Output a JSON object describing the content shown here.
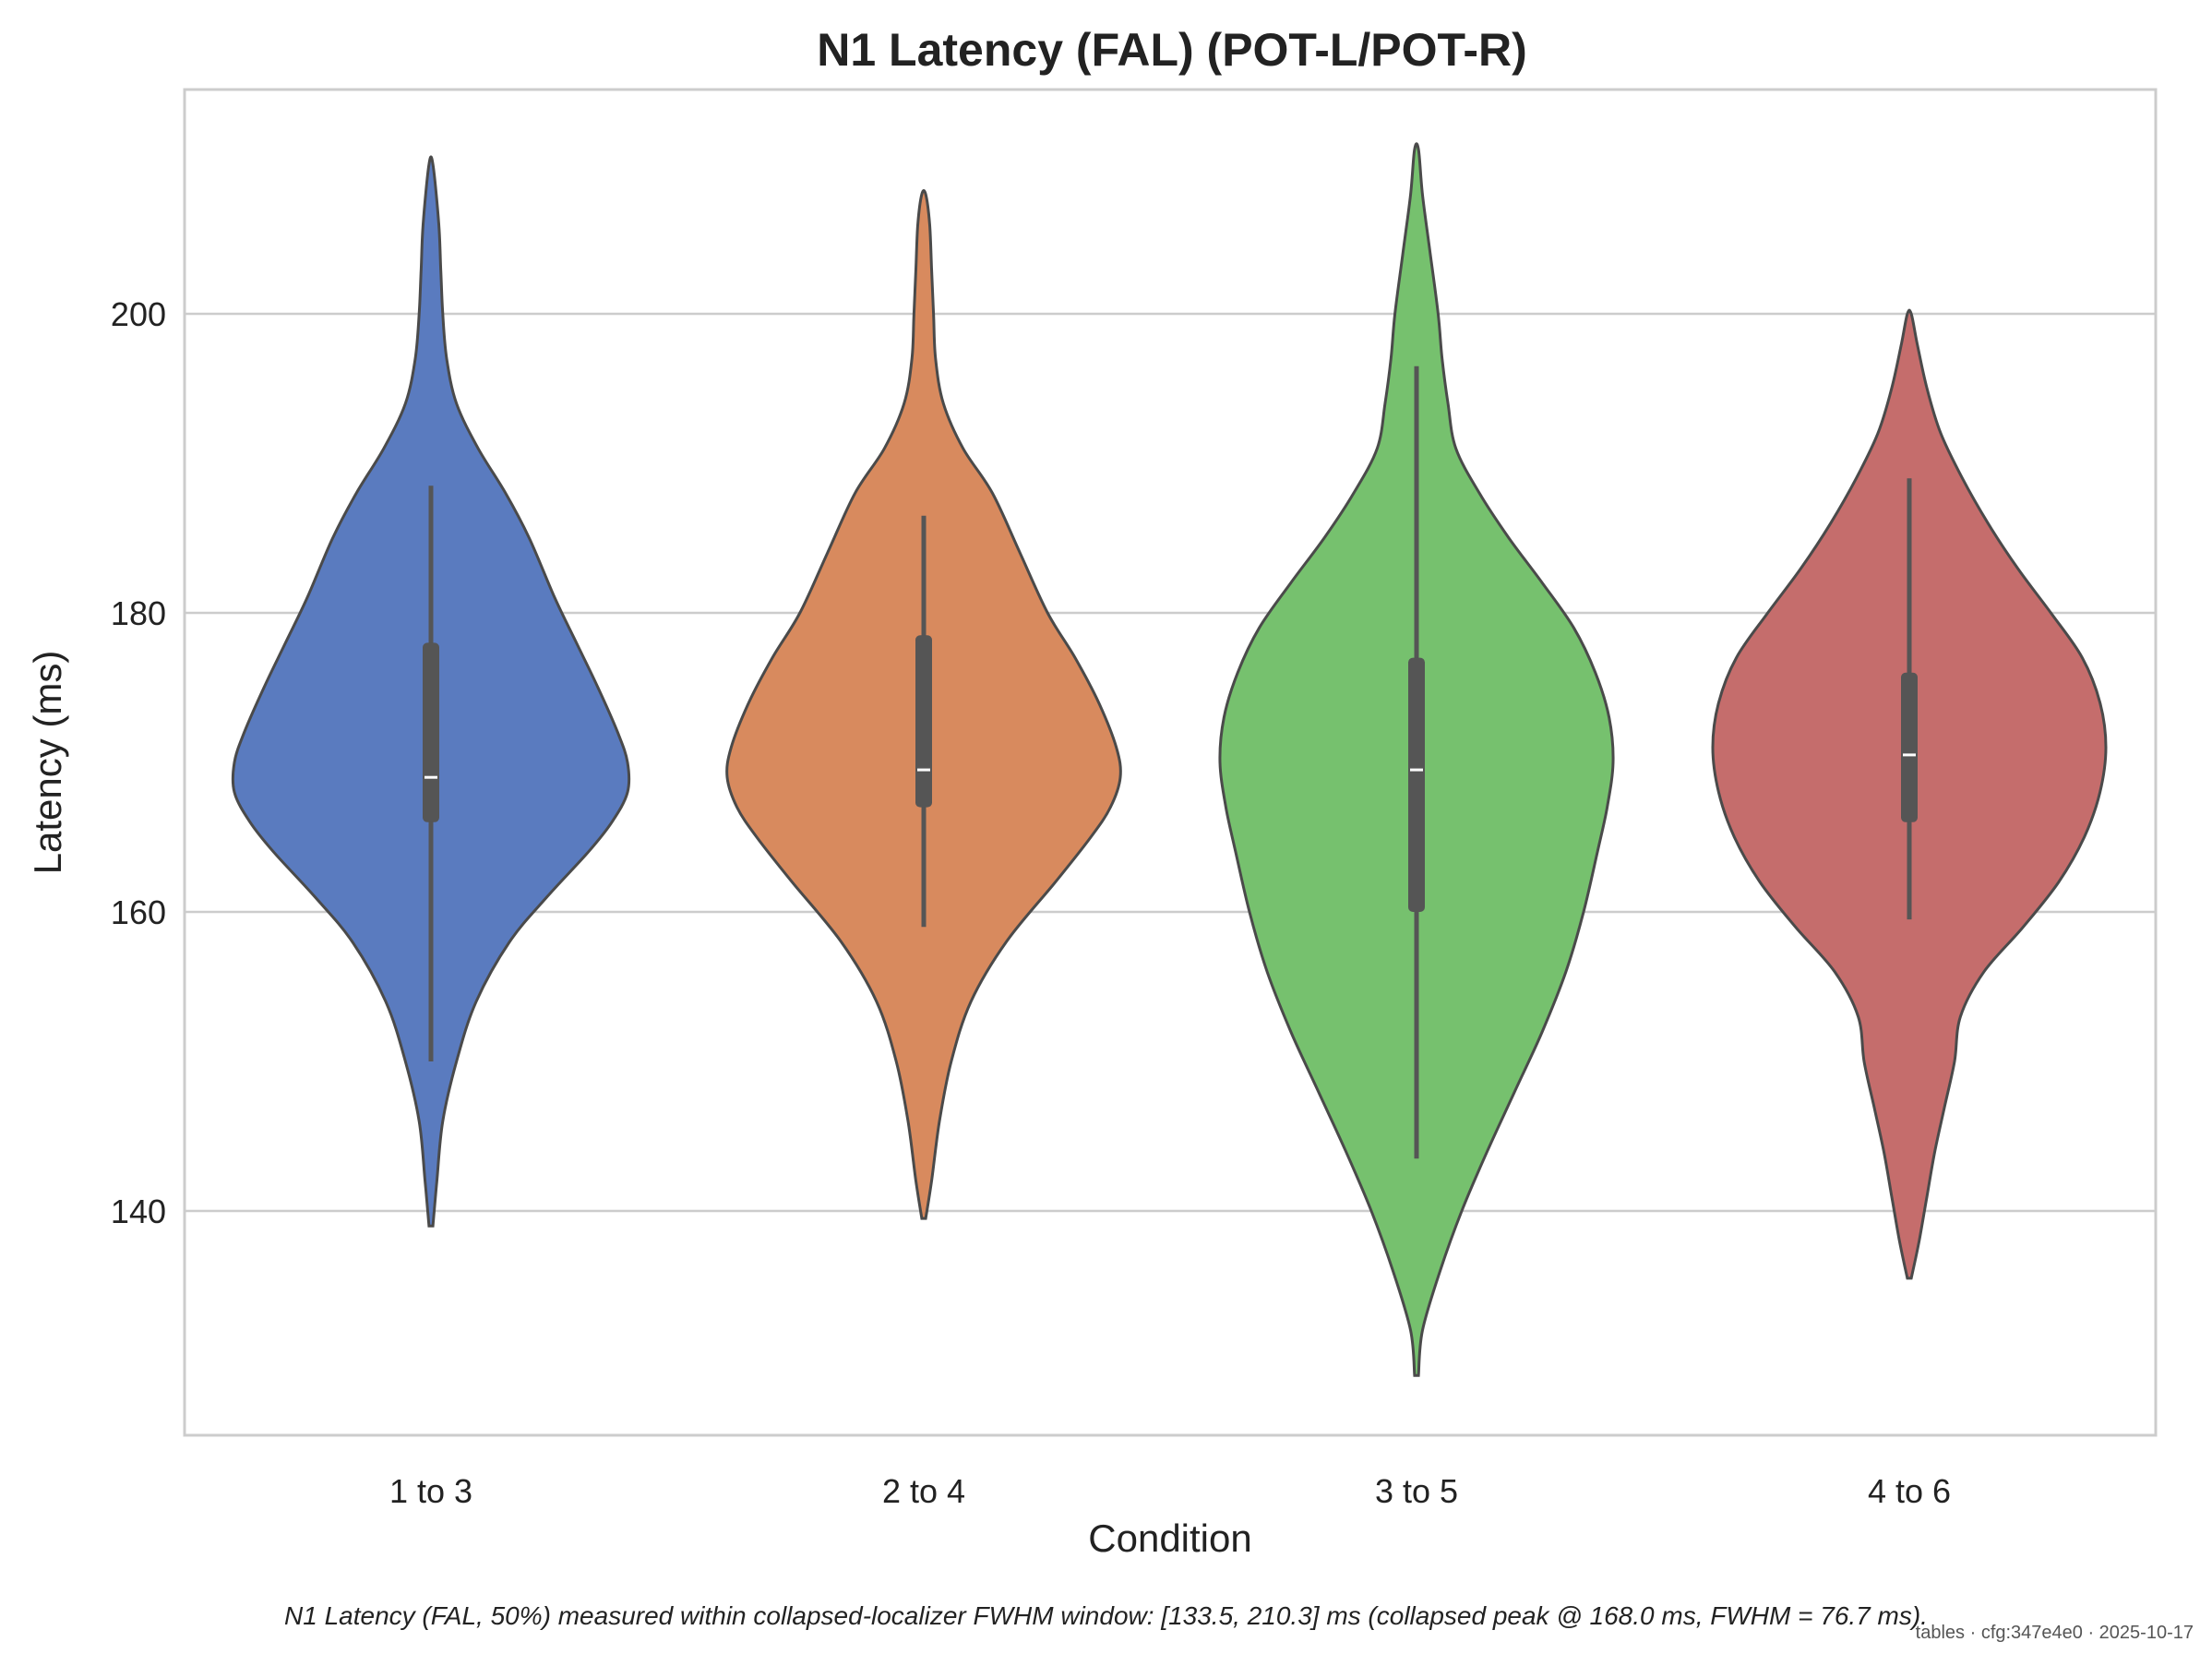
{
  "chart_data": {
    "type": "violin",
    "title": "N1 Latency (FAL) (POT-L/POT-R)",
    "xlabel": "Condition",
    "ylabel": "Latency (ms)",
    "categories": [
      "1 to 3",
      "2 to 4",
      "3 to 5",
      "4 to 6"
    ],
    "ylim": [
      125,
      215
    ],
    "yticks": [
      140,
      160,
      180,
      200
    ],
    "grid": "horizontal",
    "colors": [
      "#5a7bbf",
      "#d88a5e",
      "#76c16e",
      "#c56d6c"
    ],
    "outline_color": "#4a4a4a",
    "violins": [
      {
        "name": "1 to 3",
        "min": 139,
        "max": 210,
        "median": 169.0,
        "q1": 166.0,
        "q3": 178.0,
        "whisker_low": 150.0,
        "whisker_high": 188.5,
        "density": [
          [
            139,
            0.01
          ],
          [
            142,
            0.03
          ],
          [
            146,
            0.06
          ],
          [
            150,
            0.13
          ],
          [
            154,
            0.23
          ],
          [
            158,
            0.4
          ],
          [
            161,
            0.59
          ],
          [
            164,
            0.8
          ],
          [
            166,
            0.92
          ],
          [
            168,
            1.0
          ],
          [
            170,
            1.0
          ],
          [
            172,
            0.95
          ],
          [
            175,
            0.85
          ],
          [
            178,
            0.74
          ],
          [
            181,
            0.63
          ],
          [
            185,
            0.5
          ],
          [
            188,
            0.38
          ],
          [
            191,
            0.24
          ],
          [
            194,
            0.13
          ],
          [
            197,
            0.08
          ],
          [
            200,
            0.06
          ],
          [
            203,
            0.05
          ],
          [
            206,
            0.04
          ],
          [
            210,
            0.01
          ]
        ]
      },
      {
        "name": "2 to 4",
        "min": 139.5,
        "max": 208,
        "median": 169.5,
        "q1": 167.0,
        "q3": 178.5,
        "whisker_low": 159.0,
        "whisker_high": 186.5,
        "density": [
          [
            139.5,
            0.01
          ],
          [
            142,
            0.04
          ],
          [
            146,
            0.08
          ],
          [
            150,
            0.14
          ],
          [
            154,
            0.24
          ],
          [
            158,
            0.42
          ],
          [
            162,
            0.67
          ],
          [
            165,
            0.85
          ],
          [
            167,
            0.95
          ],
          [
            169,
            1.0
          ],
          [
            171,
            0.98
          ],
          [
            174,
            0.89
          ],
          [
            177,
            0.77
          ],
          [
            180,
            0.63
          ],
          [
            184,
            0.49
          ],
          [
            188,
            0.35
          ],
          [
            191,
            0.2
          ],
          [
            194,
            0.1
          ],
          [
            197,
            0.06
          ],
          [
            200,
            0.05
          ],
          [
            203,
            0.04
          ],
          [
            206,
            0.03
          ],
          [
            208,
            0.01
          ]
        ]
      },
      {
        "name": "3 to 5",
        "min": 129,
        "max": 211,
        "median": 169.5,
        "q1": 160.0,
        "q3": 177.0,
        "whisker_low": 143.5,
        "whisker_high": 196.5,
        "density": [
          [
            129,
            0.01
          ],
          [
            132,
            0.03
          ],
          [
            136,
            0.12
          ],
          [
            140,
            0.23
          ],
          [
            144,
            0.36
          ],
          [
            148,
            0.5
          ],
          [
            152,
            0.64
          ],
          [
            156,
            0.76
          ],
          [
            160,
            0.85
          ],
          [
            164,
            0.92
          ],
          [
            167,
            0.97
          ],
          [
            170,
            1.0
          ],
          [
            173,
            0.98
          ],
          [
            176,
            0.91
          ],
          [
            179,
            0.8
          ],
          [
            182,
            0.64
          ],
          [
            185,
            0.47
          ],
          [
            188,
            0.32
          ],
          [
            191,
            0.2
          ],
          [
            194,
            0.16
          ],
          [
            197,
            0.13
          ],
          [
            200,
            0.11
          ],
          [
            204,
            0.07
          ],
          [
            208,
            0.03
          ],
          [
            211,
            0.01
          ]
        ]
      },
      {
        "name": "4 to 6",
        "min": 135.5,
        "max": 200,
        "median": 170.5,
        "q1": 166.0,
        "q3": 176.0,
        "whisker_low": 159.5,
        "whisker_high": 189.0,
        "density": [
          [
            135.5,
            0.01
          ],
          [
            138,
            0.05
          ],
          [
            141,
            0.09
          ],
          [
            144,
            0.13
          ],
          [
            147,
            0.18
          ],
          [
            150,
            0.23
          ],
          [
            153,
            0.26
          ],
          [
            156,
            0.38
          ],
          [
            159,
            0.58
          ],
          [
            162,
            0.76
          ],
          [
            165,
            0.89
          ],
          [
            168,
            0.97
          ],
          [
            171,
            1.0
          ],
          [
            174,
            0.97
          ],
          [
            177,
            0.88
          ],
          [
            180,
            0.72
          ],
          [
            183,
            0.55
          ],
          [
            186,
            0.4
          ],
          [
            189,
            0.27
          ],
          [
            192,
            0.16
          ],
          [
            195,
            0.09
          ],
          [
            198,
            0.04
          ],
          [
            200,
            0.01
          ]
        ]
      }
    ]
  },
  "footnote": "N1 Latency (FAL, 50%) measured within collapsed-localizer FWHM window: [133.5, 210.3] ms (collapsed peak @ 168.0 ms, FWHM = 76.7 ms).",
  "stamp": "tables · cfg:347e4e0 · 2025-10-17"
}
